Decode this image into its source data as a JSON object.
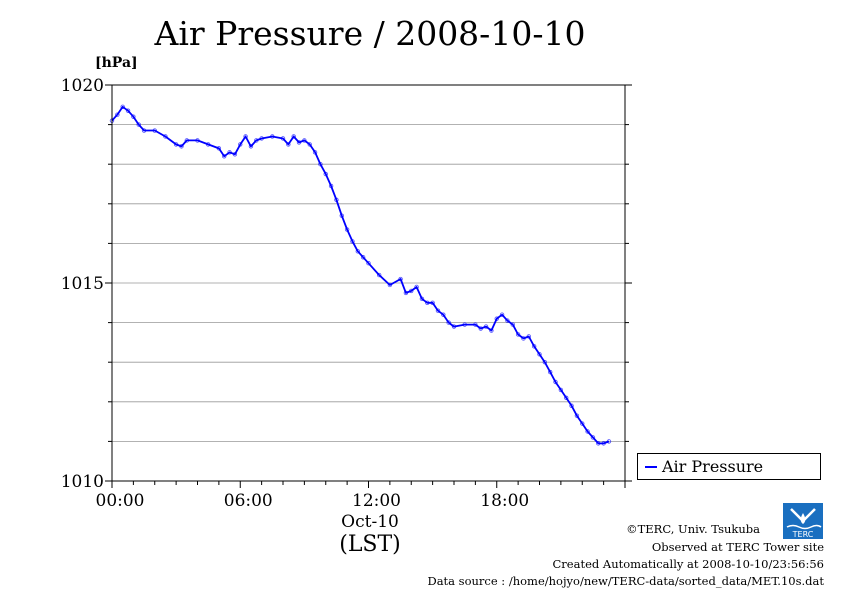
{
  "chart_data": {
    "type": "line",
    "title": "Air Pressure / 2008-10-10",
    "ylabel": "[hPa]",
    "xlabel": "(LST)",
    "x_date_label": "Oct-10",
    "ylim": [
      1010,
      1020
    ],
    "xlim_hours": [
      0,
      24
    ],
    "y_ticks": [
      1010,
      1015,
      1020
    ],
    "y_minor_step": 1,
    "x_ticks": [
      {
        "hour": 0,
        "label": "00:00"
      },
      {
        "hour": 6,
        "label": "06:00"
      },
      {
        "hour": 12,
        "label": "12:00"
      },
      {
        "hour": 18,
        "label": "18:00"
      }
    ],
    "grid": true,
    "legend_position": "right-bottom",
    "series": [
      {
        "name": "Air Pressure",
        "color": "#0000ff",
        "x_hours": [
          0.0,
          0.25,
          0.5,
          0.75,
          1.0,
          1.25,
          1.5,
          2.0,
          2.5,
          3.0,
          3.25,
          3.5,
          4.0,
          4.5,
          5.0,
          5.25,
          5.5,
          5.75,
          6.0,
          6.25,
          6.5,
          6.75,
          7.0,
          7.5,
          8.0,
          8.25,
          8.5,
          8.75,
          9.0,
          9.25,
          9.5,
          9.75,
          10.0,
          10.25,
          10.5,
          10.75,
          11.0,
          11.25,
          11.5,
          11.75,
          12.0,
          12.5,
          13.0,
          13.5,
          13.75,
          14.0,
          14.25,
          14.5,
          14.75,
          15.0,
          15.25,
          15.5,
          15.75,
          16.0,
          16.5,
          17.0,
          17.25,
          17.5,
          17.75,
          18.0,
          18.25,
          18.5,
          18.75,
          19.0,
          19.25,
          19.5,
          19.75,
          20.0,
          20.25,
          20.5,
          20.75,
          21.0,
          21.25,
          21.5,
          21.75,
          22.0,
          22.25,
          22.5,
          22.75,
          23.0,
          23.25
        ],
        "values": [
          1019.1,
          1019.25,
          1019.45,
          1019.35,
          1019.2,
          1019.0,
          1018.85,
          1018.85,
          1018.7,
          1018.5,
          1018.45,
          1018.6,
          1018.6,
          1018.5,
          1018.4,
          1018.2,
          1018.3,
          1018.25,
          1018.5,
          1018.7,
          1018.45,
          1018.6,
          1018.65,
          1018.7,
          1018.65,
          1018.5,
          1018.7,
          1018.55,
          1018.6,
          1018.5,
          1018.3,
          1018.0,
          1017.75,
          1017.45,
          1017.1,
          1016.7,
          1016.35,
          1016.05,
          1015.8,
          1015.65,
          1015.5,
          1015.2,
          1014.95,
          1015.1,
          1014.75,
          1014.8,
          1014.9,
          1014.6,
          1014.5,
          1014.5,
          1014.3,
          1014.2,
          1014.0,
          1013.9,
          1013.95,
          1013.95,
          1013.85,
          1013.9,
          1013.8,
          1014.1,
          1014.2,
          1014.05,
          1013.95,
          1013.7,
          1013.6,
          1013.65,
          1013.4,
          1013.2,
          1013.0,
          1012.75,
          1012.5,
          1012.3,
          1012.1,
          1011.9,
          1011.65,
          1011.45,
          1011.25,
          1011.1,
          1010.95,
          1010.95,
          1011.0
        ]
      }
    ]
  },
  "footer": {
    "copyright": "©TERC, Univ. Tsukuba",
    "observed": "Observed at TERC Tower site",
    "created": "Created Automatically at 2008-10-10/23:56:56",
    "source": "Data source : /home/hojyo/new/TERC-data/sorted_data/MET.10s.dat",
    "logo_text": "TERC"
  },
  "colors": {
    "series": "#0000ff",
    "grid": "#999999",
    "logo": "#1a6fc0"
  }
}
